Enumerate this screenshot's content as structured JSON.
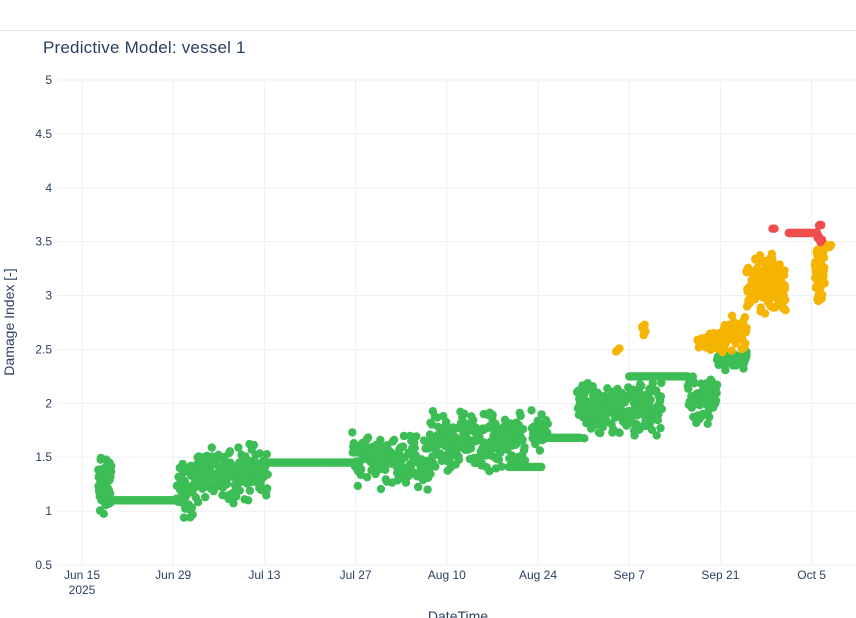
{
  "colors": {
    "normal": "#3cbd55",
    "warning": "#f5b400",
    "critical": "#ef4d4d",
    "grid": "#ebf0f8",
    "text": "#2a3f5f"
  },
  "chart_data": {
    "type": "scatter",
    "title": "Predictive Model: vessel 1",
    "xlabel": "DateTime",
    "ylabel": "Damage Index [-]",
    "ylim": [
      0.5,
      5
    ],
    "xlim": [
      "2025-06-11",
      "2025-10-09"
    ],
    "y_ticks": [
      {
        "value": 0.5,
        "label": "0.5"
      },
      {
        "value": 1,
        "label": "1"
      },
      {
        "value": 1.5,
        "label": "1.5"
      },
      {
        "value": 2,
        "label": "2"
      },
      {
        "value": 2.5,
        "label": "2.5"
      },
      {
        "value": 3,
        "label": "3"
      },
      {
        "value": 3.5,
        "label": "3.5"
      },
      {
        "value": 4,
        "label": "4"
      },
      {
        "value": 4.5,
        "label": "4.5"
      },
      {
        "value": 5,
        "label": "5"
      }
    ],
    "x_ticks": [
      {
        "day": 4,
        "label": "Jun 15",
        "sublabel": "2025"
      },
      {
        "day": 18,
        "label": "Jun 29"
      },
      {
        "day": 32,
        "label": "Jul 13"
      },
      {
        "day": 46,
        "label": "Jul 27"
      },
      {
        "day": 60,
        "label": "Aug 10"
      },
      {
        "day": 74,
        "label": "Aug 24"
      },
      {
        "day": 88,
        "label": "Sep 7"
      },
      {
        "day": 102,
        "label": "Sep 21"
      },
      {
        "day": 116,
        "label": "Oct 5"
      }
    ],
    "x_units": "days since 2025-06-11",
    "series": [
      {
        "name": "normal",
        "color_key": "normal",
        "segments": [
          {
            "x0": 6.5,
            "x1": 8.5,
            "center": 1.25,
            "spread": 0.3,
            "n": 70
          },
          {
            "x0": 7.0,
            "x1": 18.5,
            "center": 1.1,
            "spread": 0.0,
            "n": 60
          },
          {
            "x0": 18.5,
            "x1": 21.0,
            "center": 1.2,
            "spread": 0.3,
            "n": 40
          },
          {
            "x0": 21.0,
            "x1": 32.5,
            "center": 1.35,
            "spread": 0.3,
            "n": 170
          },
          {
            "x0": 32.5,
            "x1": 45.5,
            "center": 1.45,
            "spread": 0.0,
            "n": 70
          },
          {
            "x0": 45.5,
            "x1": 57.5,
            "center": 1.45,
            "spread": 0.3,
            "n": 160
          },
          {
            "x0": 57.5,
            "x1": 72.0,
            "center": 1.65,
            "spread": 0.3,
            "n": 200
          },
          {
            "x0": 69.5,
            "x1": 74.5,
            "center": 1.41,
            "spread": 0.0,
            "n": 25
          },
          {
            "x0": 73.0,
            "x1": 75.5,
            "center": 1.75,
            "spread": 0.2,
            "n": 30
          },
          {
            "x0": 75.0,
            "x1": 80.5,
            "center": 1.68,
            "spread": 0.0,
            "n": 30
          },
          {
            "x0": 80.0,
            "x1": 93.0,
            "center": 1.95,
            "spread": 0.3,
            "n": 200
          },
          {
            "x0": 88.0,
            "x1": 97.0,
            "center": 2.25,
            "spread": 0.0,
            "n": 45
          },
          {
            "x0": 97.0,
            "x1": 101.5,
            "center": 2.05,
            "spread": 0.25,
            "n": 60
          },
          {
            "x0": 101.5,
            "x1": 106.0,
            "center": 2.4,
            "spread": 0.1,
            "n": 40
          },
          {
            "x0": 103.0,
            "x1": 106.0,
            "center": 2.44,
            "spread": 0.0,
            "n": 20
          }
        ]
      },
      {
        "name": "warning",
        "color_key": "warning",
        "segments": [
          {
            "x0": 86.0,
            "x1": 86.5,
            "center": 2.5,
            "spread": 0.05,
            "n": 3
          },
          {
            "x0": 90.0,
            "x1": 90.5,
            "center": 2.7,
            "spread": 0.1,
            "n": 8
          },
          {
            "x0": 98.5,
            "x1": 102.0,
            "center": 2.58,
            "spread": 0.1,
            "n": 40
          },
          {
            "x0": 102.0,
            "x1": 106.0,
            "center": 2.65,
            "spread": 0.2,
            "n": 50
          },
          {
            "x0": 106.0,
            "x1": 112.0,
            "center": 3.1,
            "spread": 0.3,
            "n": 140
          },
          {
            "x0": 116.5,
            "x1": 118.0,
            "center": 3.2,
            "spread": 0.3,
            "n": 50
          },
          {
            "x0": 117.5,
            "x1": 119.0,
            "center": 3.46,
            "spread": 0.02,
            "n": 12
          }
        ]
      },
      {
        "name": "critical",
        "color_key": "critical",
        "segments": [
          {
            "x0": 110.0,
            "x1": 110.3,
            "center": 3.62,
            "spread": 0.0,
            "n": 2
          },
          {
            "x0": 112.5,
            "x1": 116.5,
            "center": 3.58,
            "spread": 0.0,
            "n": 25
          },
          {
            "x0": 116.8,
            "x1": 117.6,
            "center": 3.6,
            "spread": 0.12,
            "n": 8
          }
        ]
      }
    ]
  }
}
